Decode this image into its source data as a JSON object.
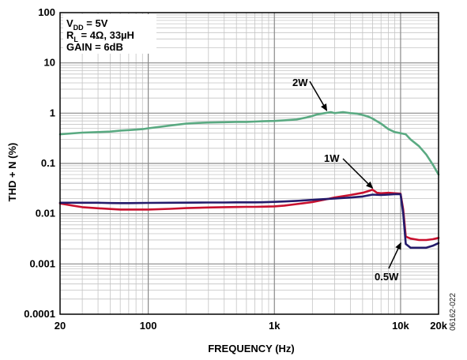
{
  "chart_data": {
    "type": "line",
    "xlabel": "FREQUENCY (Hz)",
    "ylabel": "THD + N (%)",
    "x_scale": "log",
    "y_scale": "log",
    "xlim": [
      20,
      20000
    ],
    "ylim": [
      0.0001,
      100
    ],
    "grid": true,
    "x_ticks": [
      {
        "value": 20,
        "label": "20"
      },
      {
        "value": 100,
        "label": "100"
      },
      {
        "value": 1000,
        "label": "1k"
      },
      {
        "value": 10000,
        "label": "10k"
      },
      {
        "value": 20000,
        "label": "20k"
      }
    ],
    "y_ticks": [
      {
        "value": 0.0001,
        "label": "0.0001"
      },
      {
        "value": 0.001,
        "label": "0.001"
      },
      {
        "value": 0.01,
        "label": "0.01"
      },
      {
        "value": 0.1,
        "label": "0.1"
      },
      {
        "value": 1,
        "label": "1"
      },
      {
        "value": 10,
        "label": "10"
      },
      {
        "value": 100,
        "label": "100"
      }
    ],
    "conditions": {
      "vdd_main": "V",
      "vdd_sub": "DD",
      "vdd_value": " = 5V",
      "rl_main": "R",
      "rl_sub": "L",
      "rl_value": " = 4Ω, 33µH",
      "gain": "GAIN = 6dB"
    },
    "figure_id": "06162-022",
    "series": [
      {
        "name": "2W",
        "color": "#5aaa82",
        "x": [
          20,
          30,
          40,
          50,
          60,
          70,
          80,
          90,
          100,
          120,
          150,
          200,
          250,
          300,
          400,
          500,
          600,
          700,
          800,
          1000,
          1200,
          1500,
          1800,
          2000,
          2200,
          2500,
          2800,
          3000,
          3500,
          4000,
          4500,
          5000,
          5500,
          6000,
          7000,
          8000,
          9000,
          10000,
          11000,
          12000,
          14000,
          16000,
          18000,
          20000
        ],
        "y": [
          0.38,
          0.41,
          0.42,
          0.43,
          0.45,
          0.46,
          0.47,
          0.48,
          0.5,
          0.53,
          0.57,
          0.62,
          0.64,
          0.65,
          0.66,
          0.67,
          0.67,
          0.68,
          0.69,
          0.7,
          0.72,
          0.75,
          0.82,
          0.88,
          0.95,
          1.0,
          1.05,
          1.0,
          1.05,
          1.0,
          0.98,
          0.92,
          0.86,
          0.78,
          0.62,
          0.48,
          0.42,
          0.4,
          0.38,
          0.3,
          0.22,
          0.15,
          0.095,
          0.06
        ]
      },
      {
        "name": "1W",
        "color": "#c8102e",
        "x": [
          20,
          25,
          30,
          40,
          50,
          60,
          70,
          80,
          100,
          150,
          200,
          300,
          400,
          500,
          600,
          700,
          800,
          1000,
          1200,
          1500,
          2000,
          2500,
          3000,
          4000,
          5000,
          5500,
          6000,
          6500,
          7000,
          8000,
          9000,
          10000,
          10500,
          11000,
          12000,
          14000,
          16000,
          18000,
          20000
        ],
        "y": [
          0.016,
          0.0145,
          0.0135,
          0.0128,
          0.0124,
          0.0121,
          0.0121,
          0.0121,
          0.0121,
          0.0125,
          0.0129,
          0.0133,
          0.0135,
          0.0136,
          0.0137,
          0.0137,
          0.0138,
          0.014,
          0.0145,
          0.0155,
          0.017,
          0.019,
          0.021,
          0.0235,
          0.026,
          0.028,
          0.03,
          0.026,
          0.0255,
          0.026,
          0.0255,
          0.025,
          0.012,
          0.0035,
          0.0032,
          0.003,
          0.003,
          0.0031,
          0.0033
        ]
      },
      {
        "name": "0.5W",
        "color": "#241b6b",
        "x": [
          20,
          30,
          40,
          50,
          60,
          70,
          80,
          100,
          150,
          200,
          300,
          400,
          500,
          700,
          800,
          1000,
          1200,
          1500,
          2000,
          2500,
          3000,
          4000,
          5000,
          5500,
          6000,
          7000,
          8000,
          9000,
          10000,
          10500,
          11000,
          12000,
          14000,
          16000,
          18000,
          20000
        ],
        "y": [
          0.0165,
          0.0165,
          0.0165,
          0.0163,
          0.0162,
          0.0162,
          0.0163,
          0.0164,
          0.0165,
          0.0166,
          0.0167,
          0.0167,
          0.0168,
          0.0168,
          0.0169,
          0.0172,
          0.0175,
          0.018,
          0.0188,
          0.0195,
          0.02,
          0.021,
          0.022,
          0.023,
          0.024,
          0.0235,
          0.024,
          0.0245,
          0.0245,
          0.01,
          0.0025,
          0.0021,
          0.0021,
          0.0021,
          0.0023,
          0.0026
        ]
      }
    ],
    "annotations": [
      {
        "label": "2W",
        "series": "2W",
        "arrow_to": {
          "x": 2600,
          "y": 1.05
        }
      },
      {
        "label": "1W",
        "series": "1W",
        "arrow_to": {
          "x": 6000,
          "y": 0.03
        }
      },
      {
        "label": "0.5W",
        "series": "0.5W",
        "arrow_to": {
          "x": 10500,
          "y": 0.0035
        }
      }
    ]
  }
}
